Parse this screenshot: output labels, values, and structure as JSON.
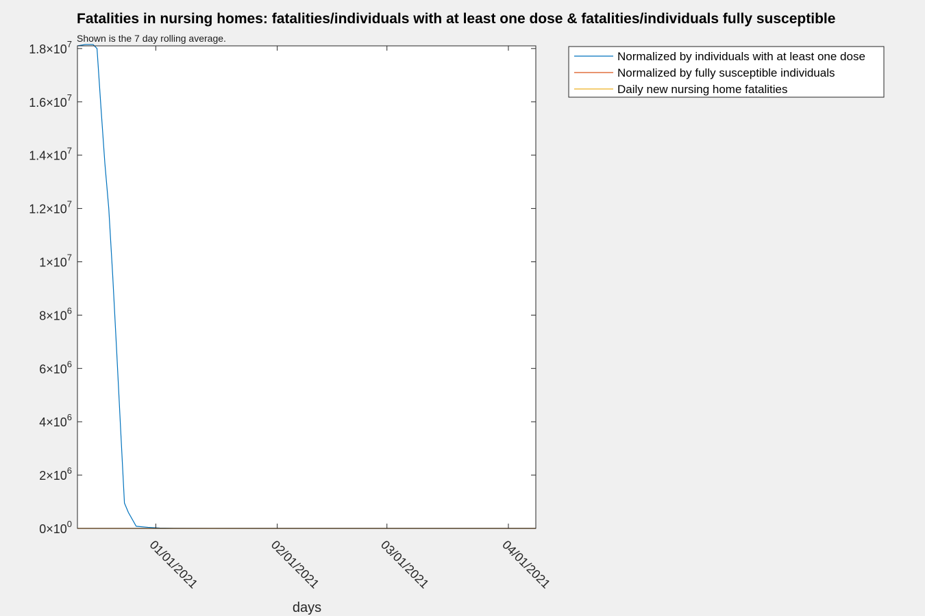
{
  "chart_data": {
    "type": "line",
    "title": "Fatalities in nursing homes: fatalities/individuals with at least one dose & fatalities/individuals fully susceptible",
    "subtitle": "Shown is the 7 day rolling average.",
    "xlabel": "days",
    "ylabel": "",
    "x_axis_type": "date",
    "xlim": [
      "2020-12-12",
      "2021-04-08"
    ],
    "ylim": [
      0,
      18100000
    ],
    "y_ticks": [
      {
        "value": 0,
        "mantissa": "0",
        "exponent": "0"
      },
      {
        "value": 2000000,
        "mantissa": "2",
        "exponent": "6"
      },
      {
        "value": 4000000,
        "mantissa": "4",
        "exponent": "6"
      },
      {
        "value": 6000000,
        "mantissa": "6",
        "exponent": "6"
      },
      {
        "value": 8000000,
        "mantissa": "8",
        "exponent": "6"
      },
      {
        "value": 10000000,
        "mantissa": "1",
        "exponent": "7"
      },
      {
        "value": 12000000,
        "mantissa": "1.2",
        "exponent": "7"
      },
      {
        "value": 14000000,
        "mantissa": "1.4",
        "exponent": "7"
      },
      {
        "value": 16000000,
        "mantissa": "1.6",
        "exponent": "7"
      },
      {
        "value": 18000000,
        "mantissa": "1.8",
        "exponent": "7"
      }
    ],
    "times_sign": "×",
    "x_ticks": [
      {
        "date": "2021-01-01",
        "label": "01/01/2021"
      },
      {
        "date": "2021-02-01",
        "label": "02/01/2021"
      },
      {
        "date": "2021-03-01",
        "label": "03/01/2021"
      },
      {
        "date": "2021-04-01",
        "label": "04/01/2021"
      }
    ],
    "grid": false,
    "legend_position": "outside-top-right",
    "series": [
      {
        "name": "Normalized by individuals with at least one dose",
        "color": "#0072BD",
        "points": [
          [
            "2020-12-12",
            18100000
          ],
          [
            "2020-12-14",
            18150000
          ],
          [
            "2020-12-16",
            18150000
          ],
          [
            "2020-12-17",
            18000000
          ],
          [
            "2020-12-18",
            15800000
          ],
          [
            "2020-12-19",
            13700000
          ],
          [
            "2020-12-20",
            12000000
          ],
          [
            "2020-12-21",
            9500000
          ],
          [
            "2020-12-22",
            6700000
          ],
          [
            "2020-12-23",
            3800000
          ],
          [
            "2020-12-24",
            950000
          ],
          [
            "2020-12-25",
            600000
          ],
          [
            "2020-12-27",
            80000
          ],
          [
            "2020-12-30",
            40000
          ],
          [
            "2021-01-02",
            15000
          ],
          [
            "2021-01-06",
            3000
          ],
          [
            "2021-01-15",
            1000
          ],
          [
            "2021-02-01",
            500
          ],
          [
            "2021-03-01",
            200
          ],
          [
            "2021-04-08",
            100
          ]
        ]
      },
      {
        "name": "Normalized by fully susceptible individuals",
        "color": "#D95319",
        "points": [
          [
            "2020-12-12",
            0
          ],
          [
            "2021-01-01",
            0
          ],
          [
            "2021-02-01",
            0
          ],
          [
            "2021-03-01",
            0
          ],
          [
            "2021-04-08",
            0
          ]
        ]
      },
      {
        "name": "Daily new nursing home fatalities",
        "color": "#EDB120",
        "points": [
          [
            "2020-12-12",
            0
          ],
          [
            "2021-01-01",
            0
          ],
          [
            "2021-02-01",
            0
          ],
          [
            "2021-03-01",
            0
          ],
          [
            "2021-04-08",
            0
          ]
        ]
      }
    ]
  }
}
